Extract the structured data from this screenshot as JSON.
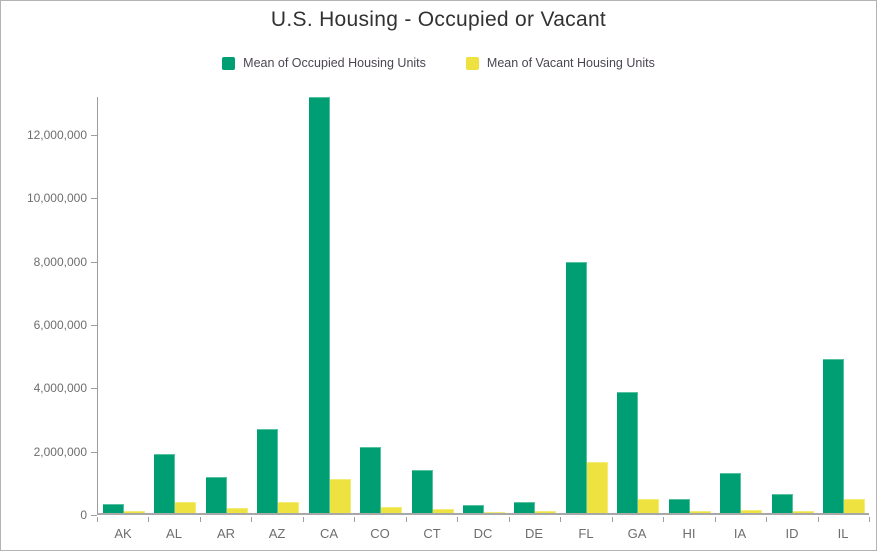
{
  "title": "U.S. Housing - Occupied or Vacant",
  "legend": {
    "items": [
      {
        "label": "Mean of Occupied Housing Units",
        "color": "#009e73"
      },
      {
        "label": "Mean of Vacant Housing Units",
        "color": "#ede23f"
      }
    ]
  },
  "colors": {
    "occupied": "#009e73",
    "occupied_edge": "#55c19e",
    "vacant": "#ede23f",
    "vacant_edge": "#f4ec74",
    "axis_line": "#9e9e9e",
    "tick_text": "#6e6e6e",
    "title_text": "#323232",
    "legend_text": "#4c4653",
    "frame_border": "#b3b3b3",
    "background": "#ffffff"
  },
  "chart_data": {
    "type": "bar",
    "title": "U.S. Housing - Occupied or Vacant",
    "xlabel": "",
    "ylabel": "",
    "grid": false,
    "legend_position": "top",
    "categories": [
      "AK",
      "AL",
      "AR",
      "AZ",
      "CA",
      "CO",
      "CT",
      "DC",
      "DE",
      "FL",
      "GA",
      "HI",
      "IA",
      "ID",
      "IL"
    ],
    "series": [
      {
        "name": "Mean of Occupied Housing Units",
        "color": "#009e73",
        "edge_color": "#55c19e",
        "values": [
          280000,
          1860000,
          1130000,
          2650000,
          13140000,
          2090000,
          1350000,
          260000,
          360000,
          7930000,
          3810000,
          430000,
          1250000,
          610000,
          4860000
        ]
      },
      {
        "name": "Mean of Vacant Housing Units",
        "color": "#ede23f",
        "edge_color": "#f4ec74",
        "values": [
          50000,
          360000,
          170000,
          350000,
          1070000,
          180000,
          120000,
          30000,
          70000,
          1600000,
          440000,
          60000,
          100000,
          60000,
          450000
        ]
      }
    ],
    "ylim": [
      0,
      13200000
    ],
    "yticks": [
      0,
      2000000,
      4000000,
      6000000,
      8000000,
      10000000,
      12000000
    ],
    "ytick_labels": [
      "0",
      "2,000,000",
      "4,000,000",
      "6,000,000",
      "8,000,000",
      "10,000,000",
      "12,000,000"
    ]
  }
}
